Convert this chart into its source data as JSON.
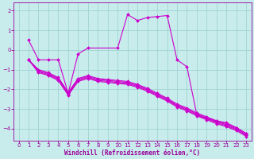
{
  "background_color": "#c8ecec",
  "line_color": "#cc00cc",
  "grid_color": "#a0d4d4",
  "xlabel": "Windchill (Refroidissement éolien,°C)",
  "xlabel_color": "#990099",
  "xlabel_fontsize": 5.5,
  "tick_color": "#990099",
  "tick_fontsize": 5,
  "xlim": [
    -0.5,
    23.5
  ],
  "ylim": [
    -4.6,
    2.4
  ],
  "yticks": [
    2,
    1,
    0,
    -1,
    -2,
    -3,
    -4
  ],
  "xticks": [
    0,
    1,
    2,
    3,
    4,
    5,
    6,
    7,
    8,
    9,
    10,
    11,
    12,
    13,
    14,
    15,
    16,
    17,
    18,
    19,
    20,
    21,
    22,
    23
  ],
  "lines": [
    {
      "x": [
        1,
        2,
        3,
        4,
        5,
        6,
        7,
        10,
        11,
        12,
        13,
        14,
        15,
        16,
        17,
        18,
        19,
        20,
        21,
        22,
        23
      ],
      "y": [
        0.5,
        -0.5,
        -0.5,
        -0.5,
        -2.2,
        -0.2,
        0.1,
        0.1,
        1.8,
        1.5,
        1.65,
        1.7,
        1.75,
        -0.5,
        -0.85,
        -3.3,
        -3.5,
        -3.6,
        -3.7,
        -3.95,
        -4.25
      ]
    },
    {
      "x": [
        1,
        2,
        3,
        4,
        5,
        6,
        7,
        8,
        9,
        10,
        11,
        12,
        13,
        14,
        15,
        16,
        17,
        18,
        19,
        20,
        21,
        22,
        23
      ],
      "y": [
        -0.5,
        -1.0,
        -1.15,
        -1.4,
        -2.15,
        -1.45,
        -1.3,
        -1.45,
        -1.5,
        -1.55,
        -1.6,
        -1.75,
        -1.95,
        -2.2,
        -2.45,
        -2.75,
        -2.95,
        -3.2,
        -3.4,
        -3.6,
        -3.75,
        -3.95,
        -4.25
      ]
    },
    {
      "x": [
        1,
        2,
        3,
        4,
        5,
        6,
        7,
        8,
        9,
        10,
        11,
        12,
        13,
        14,
        15,
        16,
        17,
        18,
        19,
        20,
        21,
        22,
        23
      ],
      "y": [
        -0.5,
        -1.05,
        -1.2,
        -1.45,
        -2.2,
        -1.5,
        -1.35,
        -1.5,
        -1.55,
        -1.6,
        -1.65,
        -1.8,
        -2.0,
        -2.25,
        -2.5,
        -2.8,
        -3.0,
        -3.25,
        -3.45,
        -3.65,
        -3.8,
        -4.0,
        -4.3
      ]
    },
    {
      "x": [
        1,
        2,
        3,
        4,
        5,
        6,
        7,
        8,
        9,
        10,
        11,
        12,
        13,
        14,
        15,
        16,
        17,
        18,
        19,
        20,
        21,
        22,
        23
      ],
      "y": [
        -0.5,
        -1.1,
        -1.25,
        -1.5,
        -2.25,
        -1.55,
        -1.4,
        -1.55,
        -1.6,
        -1.65,
        -1.7,
        -1.85,
        -2.05,
        -2.3,
        -2.55,
        -2.85,
        -3.05,
        -3.3,
        -3.5,
        -3.7,
        -3.85,
        -4.05,
        -4.35
      ]
    },
    {
      "x": [
        1,
        2,
        3,
        4,
        5,
        6,
        7,
        8,
        9,
        10,
        11,
        12,
        13,
        14,
        15,
        16,
        17,
        18,
        19,
        20,
        21,
        22,
        23
      ],
      "y": [
        -0.5,
        -1.15,
        -1.3,
        -1.55,
        -2.3,
        -1.6,
        -1.45,
        -1.6,
        -1.65,
        -1.7,
        -1.75,
        -1.9,
        -2.1,
        -2.35,
        -2.6,
        -2.9,
        -3.1,
        -3.35,
        -3.55,
        -3.75,
        -3.9,
        -4.1,
        -4.4
      ]
    }
  ]
}
